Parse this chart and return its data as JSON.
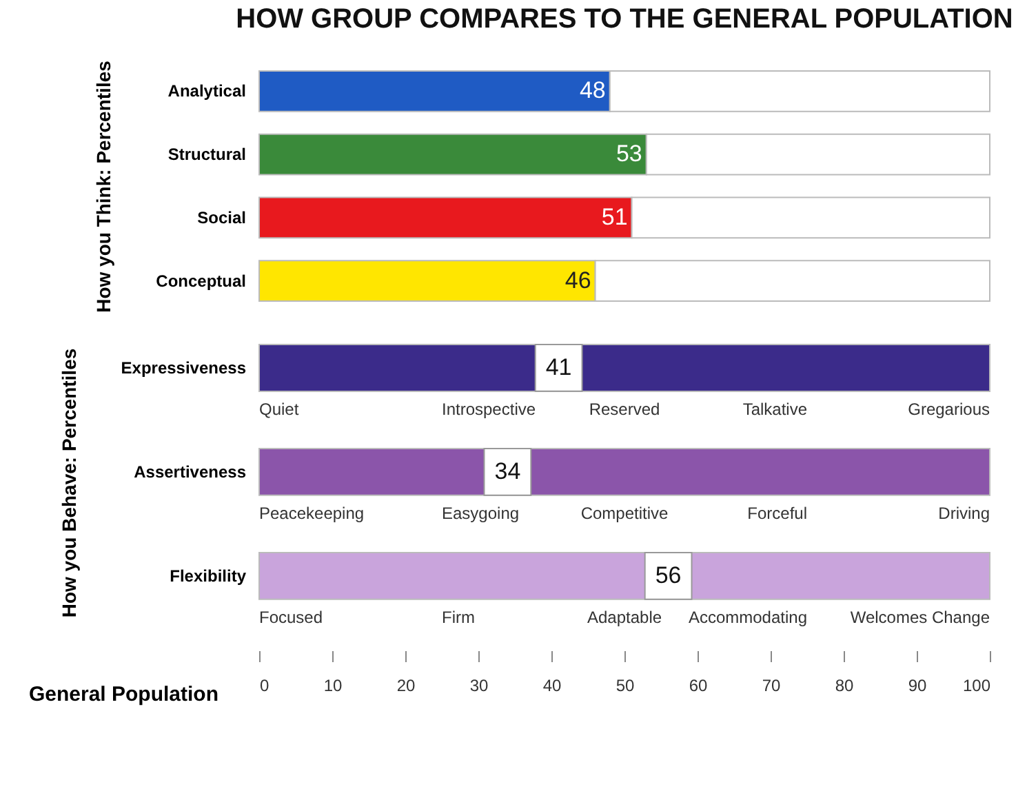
{
  "chart_data": [
    {
      "type": "bar",
      "orientation": "horizontal",
      "title": "HOW GROUP COMPARES TO THE GENERAL POPULATION",
      "ylabel": "How you Think: Percentiles",
      "categories": [
        "Analytical",
        "Structural",
        "Social",
        "Conceptual"
      ],
      "stacked": true,
      "series": [
        {
          "colors": [
            "#1f5bc4",
            "#3a8a3a",
            "#e8191e",
            "#ffe600"
          ],
          "values": [
            48,
            53,
            51,
            46
          ],
          "data_labels": true
        },
        {
          "color": "#ffffff",
          "values": [
            52,
            47,
            49,
            54
          ]
        }
      ],
      "xlim": [
        0,
        100
      ],
      "xticks": [
        0,
        10,
        20,
        30,
        40,
        50,
        60,
        70,
        80,
        90,
        100
      ],
      "tick_labels": "y"
    },
    {
      "type": "bar",
      "orientation": "horizontal",
      "ylabel": "How you Behave: Percentiles",
      "xlabel": "General Population",
      "categories": [
        "Expressiveness",
        "Assertiveness",
        "Flexibility"
      ],
      "series": [
        {
          "colors": [
            "#3b2b8a",
            "#8b55aa",
            "#c9a4dc"
          ],
          "values": [
            100,
            100,
            100
          ]
        },
        {
          "type": "scatter",
          "marker": "square",
          "color": "#ffffff",
          "values": [
            41,
            34,
            56
          ],
          "data_labels": true
        }
      ],
      "annotations": [
        "Quiet",
        "Introspective",
        "Reserved",
        "Talkative",
        "Gregarious",
        "Peacekeeping",
        "Easygoing",
        "Competitive",
        "Forceful",
        "Driving",
        "Focused",
        "Firm",
        "Adaptable",
        "Accommodating",
        "Welcomes Change"
      ],
      "xlim": [
        0,
        100
      ],
      "xticks": [
        0,
        10,
        20,
        30,
        40,
        50,
        60,
        70,
        80,
        90,
        100
      ]
    }
  ]
}
